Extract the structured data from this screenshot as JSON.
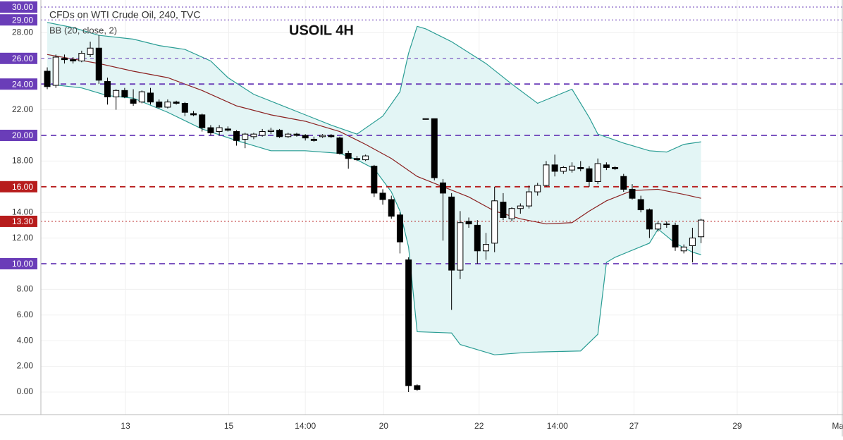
{
  "chart_data": {
    "type": "candlestick",
    "title": "CFDs on WTI Crude Oil, 240, TVC",
    "indicator": "BB (20, close, 2)",
    "annotation": "USOIL 4H",
    "xlim": [
      -0.74,
      92.5
    ],
    "ylim": [
      -1.76,
      30.55
    ],
    "grid": true,
    "xticks": [
      {
        "value": 9.1,
        "label": "13"
      },
      {
        "value": 21.1,
        "label": "15"
      },
      {
        "value": 30,
        "label": "14:00"
      },
      {
        "value": 39.1,
        "label": "20"
      },
      {
        "value": 50.2,
        "label": "22"
      },
      {
        "value": 59.3,
        "label": "14:00"
      },
      {
        "value": 68.2,
        "label": "27"
      },
      {
        "value": 80.2,
        "label": "29"
      },
      {
        "value": 91.9,
        "label": "Ma"
      }
    ],
    "yticks": [
      {
        "value": 0,
        "label": "0.00"
      },
      {
        "value": 2,
        "label": "2.00"
      },
      {
        "value": 4,
        "label": "4.00"
      },
      {
        "value": 6,
        "label": "6.00"
      },
      {
        "value": 8,
        "label": "8.00"
      },
      {
        "value": 12,
        "label": "12.00"
      },
      {
        "value": 14,
        "label": "14.00"
      },
      {
        "value": 18,
        "label": "18.00"
      },
      {
        "value": 22,
        "label": "22.00"
      },
      {
        "value": 28,
        "label": "28.00"
      }
    ],
    "levels": [
      {
        "value": 30,
        "label": "30.00",
        "color": "#6a3db8",
        "style": "dotted"
      },
      {
        "value": 29,
        "label": "29.00",
        "color": "#6a3db8",
        "style": "dotted"
      },
      {
        "value": 26,
        "label": "26.00",
        "color": "#6a3db8",
        "style": "thin"
      },
      {
        "value": 24,
        "label": "24.00",
        "color": "#6a3db8",
        "style": "dashed"
      },
      {
        "value": 20,
        "label": "20.00",
        "color": "#6a3db8",
        "style": "dashed"
      },
      {
        "value": 16,
        "label": "16.00",
        "color": "#b71c1c",
        "style": "dashed"
      },
      {
        "value": 13.3,
        "label": "13.30",
        "color": "#b71c1c",
        "style": "dotted"
      },
      {
        "value": 10,
        "label": "10.00",
        "color": "#6a3db8",
        "style": "dashed"
      }
    ],
    "up_color": "#ffffff",
    "down_color": "#000000",
    "ohlc": [
      [
        25.0,
        25.3,
        23.6,
        23.8
      ],
      [
        23.9,
        26.3,
        23.7,
        26.1
      ],
      [
        26.0,
        26.3,
        25.6,
        25.9
      ],
      [
        25.9,
        26.1,
        25.6,
        25.8
      ],
      [
        25.8,
        26.6,
        25.7,
        26.4
      ],
      [
        26.3,
        27.3,
        26.1,
        26.8
      ],
      [
        26.8,
        27.8,
        24.0,
        24.3
      ],
      [
        24.2,
        24.5,
        22.4,
        23.0
      ],
      [
        23.0,
        23.6,
        22.0,
        23.5
      ],
      [
        23.5,
        23.7,
        22.9,
        23.0
      ],
      [
        22.8,
        23.6,
        22.3,
        22.5
      ],
      [
        22.6,
        23.5,
        22.5,
        23.4
      ],
      [
        23.3,
        23.7,
        22.4,
        22.6
      ],
      [
        22.6,
        22.8,
        22.1,
        22.2
      ],
      [
        22.2,
        22.8,
        22.1,
        22.6
      ],
      [
        22.6,
        22.7,
        22.4,
        22.5
      ],
      [
        22.5,
        22.6,
        21.5,
        21.8
      ],
      [
        21.7,
        21.9,
        21.5,
        21.6
      ],
      [
        21.6,
        21.7,
        20.3,
        20.6
      ],
      [
        20.6,
        20.8,
        20.0,
        20.2
      ],
      [
        20.3,
        20.8,
        20.0,
        20.6
      ],
      [
        20.5,
        20.7,
        20.3,
        20.4
      ],
      [
        20.3,
        20.4,
        19.2,
        19.6
      ],
      [
        19.7,
        20.2,
        19.0,
        20.1
      ],
      [
        19.9,
        20.2,
        19.7,
        20.1
      ],
      [
        20.0,
        20.5,
        19.9,
        20.3
      ],
      [
        20.3,
        20.6,
        20.1,
        20.4
      ],
      [
        20.4,
        20.5,
        19.8,
        19.9
      ],
      [
        19.9,
        20.2,
        19.8,
        20.1
      ],
      [
        20.1,
        20.2,
        19.9,
        20.0
      ],
      [
        20.0,
        20.1,
        19.6,
        19.8
      ],
      [
        19.7,
        19.9,
        19.5,
        19.6
      ],
      [
        19.9,
        20.1,
        19.8,
        20.0
      ],
      [
        20.0,
        20.1,
        19.8,
        19.9
      ],
      [
        19.8,
        19.9,
        18.5,
        18.6
      ],
      [
        18.6,
        18.8,
        17.4,
        18.2
      ],
      [
        18.2,
        18.4,
        18.0,
        18.1
      ],
      [
        18.1,
        18.5,
        18.0,
        18.4
      ],
      [
        17.6,
        17.7,
        15.2,
        15.5
      ],
      [
        15.5,
        15.8,
        14.6,
        15.0
      ],
      [
        15.0,
        15.3,
        13.5,
        13.7
      ],
      [
        13.8,
        14.0,
        10.8,
        11.7
      ],
      [
        10.3,
        10.5,
        0.0,
        0.5
      ],
      [
        0.5,
        0.6,
        0.1,
        0.2
      ],
      [
        21.3,
        21.3,
        21.3,
        21.3
      ],
      [
        21.3,
        21.3,
        16.5,
        16.7
      ],
      [
        16.3,
        16.6,
        11.8,
        15.5
      ],
      [
        15.2,
        15.5,
        6.4,
        9.5
      ],
      [
        9.5,
        14.1,
        8.8,
        13.2
      ],
      [
        13.3,
        13.6,
        12.8,
        13.1
      ],
      [
        13.0,
        13.4,
        10.0,
        11.0
      ],
      [
        11.0,
        12.4,
        10.3,
        11.5
      ],
      [
        11.6,
        16.0,
        10.9,
        14.9
      ],
      [
        14.8,
        15.5,
        13.4,
        13.6
      ],
      [
        13.5,
        14.4,
        13.3,
        14.3
      ],
      [
        14.3,
        14.7,
        13.9,
        14.5
      ],
      [
        14.5,
        16.1,
        14.3,
        15.6
      ],
      [
        15.6,
        16.3,
        15.3,
        16.1
      ],
      [
        16.1,
        18.0,
        16.0,
        17.7
      ],
      [
        17.7,
        18.5,
        16.8,
        17.2
      ],
      [
        17.2,
        17.6,
        17.0,
        17.5
      ],
      [
        17.3,
        17.9,
        17.1,
        17.6
      ],
      [
        17.5,
        18.0,
        17.2,
        17.4
      ],
      [
        17.4,
        17.6,
        16.0,
        16.4
      ],
      [
        16.4,
        18.2,
        16.2,
        17.8
      ],
      [
        17.7,
        17.9,
        17.3,
        17.5
      ],
      [
        17.5,
        17.6,
        17.3,
        17.4
      ],
      [
        16.8,
        17.0,
        15.6,
        15.8
      ],
      [
        15.8,
        16.2,
        15.0,
        15.1
      ],
      [
        15.0,
        15.3,
        14.0,
        14.2
      ],
      [
        14.2,
        14.3,
        12.0,
        12.7
      ],
      [
        12.7,
        13.3,
        12.5,
        13.1
      ],
      [
        13.1,
        13.3,
        12.8,
        13.1
      ],
      [
        13.0,
        13.2,
        11.0,
        11.3
      ],
      [
        11.0,
        11.5,
        10.8,
        11.3
      ],
      [
        11.4,
        12.8,
        10.1,
        12.0
      ],
      [
        12.1,
        13.5,
        11.6,
        13.4
      ]
    ],
    "bands": {
      "color": "#2a9d94",
      "basis_color": "#8b2020",
      "fill": "#e3f5f5",
      "upper": {
        "x": [
          0,
          3,
          6,
          10,
          13,
          16,
          19,
          21,
          24,
          27,
          30,
          33,
          36,
          39,
          41,
          42,
          43,
          44,
          47,
          51,
          54,
          57,
          61,
          63,
          64,
          67,
          70,
          72,
          74,
          76
        ],
        "values": [
          28.8,
          28.4,
          27.8,
          27.5,
          27.0,
          26.7,
          25.8,
          24.5,
          23.2,
          22.4,
          21.6,
          20.8,
          20.1,
          21.5,
          23.4,
          26.4,
          28.5,
          28.3,
          27.3,
          25.6,
          24.0,
          22.5,
          23.6,
          21.4,
          20.1,
          19.4,
          18.8,
          18.7,
          19.3,
          19.5
        ]
      },
      "basis": {
        "x": [
          0,
          6,
          10,
          14,
          18,
          22,
          26,
          30,
          34,
          37,
          40,
          43,
          46,
          49,
          52,
          55,
          58,
          61,
          63,
          65,
          68,
          71,
          74,
          76
        ],
        "values": [
          26.3,
          25.6,
          25.0,
          24.5,
          23.5,
          22.3,
          21.6,
          21.1,
          20.3,
          19.3,
          18.2,
          16.8,
          16.0,
          15.2,
          14.1,
          13.5,
          13.1,
          13.2,
          14.1,
          14.9,
          15.7,
          15.8,
          15.4,
          15.1
        ]
      },
      "lower": {
        "x": [
          0,
          4,
          7,
          10,
          14,
          18,
          22,
          26,
          30,
          34,
          36,
          38,
          40,
          41,
          42,
          43,
          47,
          48,
          52,
          56,
          62,
          64,
          65,
          66,
          70,
          71,
          73,
          75,
          76
        ],
        "values": [
          24.0,
          23.7,
          23.1,
          22.9,
          21.8,
          20.5,
          19.6,
          18.8,
          18.8,
          18.6,
          18.1,
          17.4,
          15.6,
          14.1,
          11.3,
          4.7,
          4.6,
          3.7,
          2.9,
          3.1,
          3.2,
          4.5,
          10.1,
          10.5,
          11.6,
          12.7,
          11.6,
          10.9,
          10.7
        ]
      }
    }
  }
}
